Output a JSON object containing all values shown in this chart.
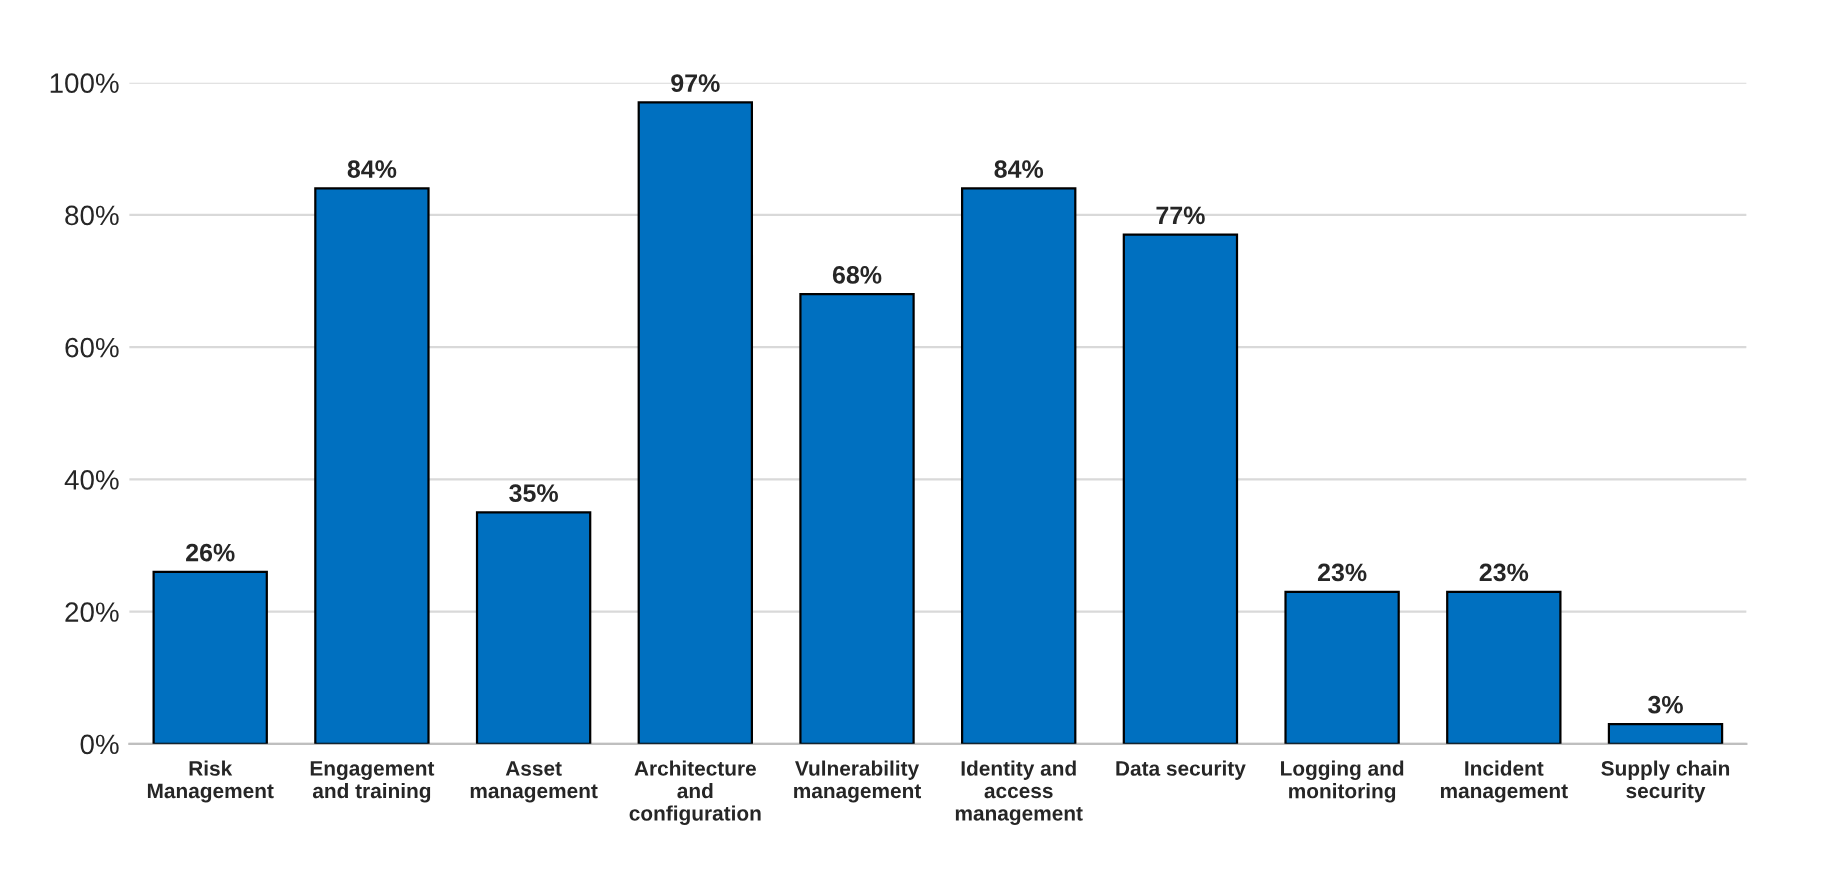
{
  "chart_data": {
    "type": "bar",
    "categories": [
      "Risk\nManagement",
      "Engagement\nand training",
      "Asset\nmanagement",
      "Architecture\nand\nconfiguration",
      "Vulnerability\nmanagement",
      "Identity and\naccess\nmanagement",
      "Data security",
      "Logging and\nmonitoring",
      "Incident\nmanagement",
      "Supply chain\nsecurity"
    ],
    "values": [
      26,
      84,
      35,
      97,
      68,
      84,
      77,
      23,
      23,
      3
    ],
    "value_labels": [
      "26%",
      "84%",
      "35%",
      "97%",
      "68%",
      "84%",
      "77%",
      "23%",
      "23%",
      "3%"
    ],
    "color": "#0070c0",
    "ylim": [
      0,
      100
    ],
    "yticks": [
      {
        "value": 0,
        "label": "0%"
      },
      {
        "value": 20,
        "label": "20%"
      },
      {
        "value": 40,
        "label": "40%"
      },
      {
        "value": 60,
        "label": "60%"
      },
      {
        "value": 80,
        "label": "80%"
      },
      {
        "value": 100,
        "label": "100%"
      }
    ],
    "grid": "y",
    "legend": false
  }
}
